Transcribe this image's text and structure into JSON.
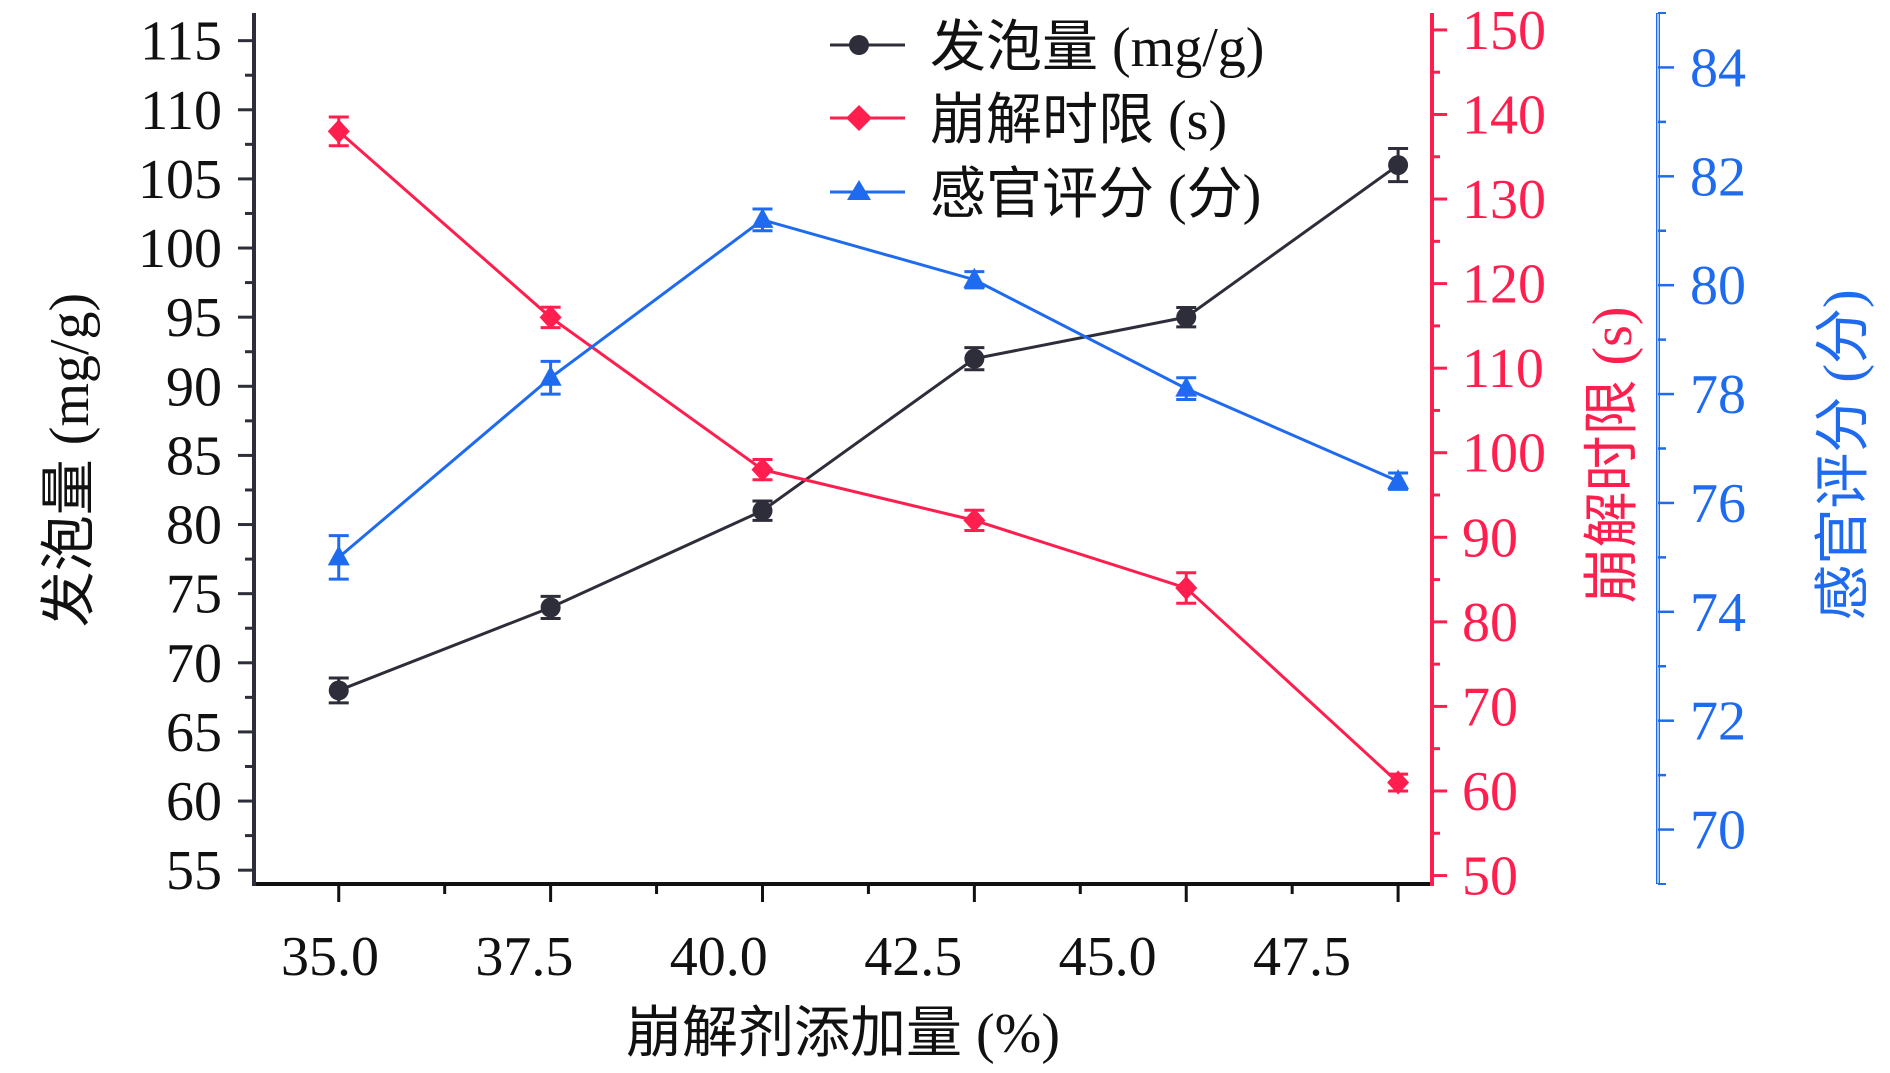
{
  "chart_data": {
    "type": "line",
    "title": "",
    "xlabel": "崩解剂添加量 (%)",
    "x": [
      35.0,
      37.5,
      40.0,
      42.5,
      45.0,
      47.5
    ],
    "x_tick_labels": [
      "35.0",
      "37.5",
      "40.0",
      "42.5",
      "45.0",
      "47.5"
    ],
    "xlim": [
      34.0,
      47.9
    ],
    "grid": false,
    "legend_position": "top-center",
    "axes": {
      "left": {
        "label": "发泡量 (mg/g)",
        "color": "#2e2e3a",
        "ylim": [
          54,
          117
        ],
        "ticks": [
          55,
          60,
          65,
          70,
          75,
          80,
          85,
          90,
          95,
          100,
          105,
          110,
          115
        ],
        "tick_labels": [
          "55",
          "60",
          "65",
          "70",
          "75",
          "80",
          "85",
          "90",
          "95",
          "100",
          "105",
          "110",
          "115"
        ]
      },
      "right1": {
        "label": "崩解时限 (s)",
        "color": "#ff1f4f",
        "ylim": [
          49,
          152
        ],
        "ticks": [
          50,
          60,
          70,
          80,
          90,
          100,
          110,
          120,
          130,
          140,
          150
        ],
        "tick_labels": [
          "50",
          "60",
          "70",
          "80",
          "90",
          "100",
          "110",
          "120",
          "130",
          "140",
          "150"
        ]
      },
      "right2": {
        "label": "感官评分 (分)",
        "color": "#1f6bf0",
        "ylim": [
          69,
          85
        ],
        "ticks": [
          70,
          72,
          74,
          76,
          78,
          80,
          82,
          84
        ],
        "tick_labels": [
          "70",
          "72",
          "74",
          "76",
          "78",
          "80",
          "82",
          "84"
        ]
      }
    },
    "series": [
      {
        "name": "发泡量 (mg/g)",
        "axis": "left",
        "marker": "circle",
        "color": "#2e2e3a",
        "values": [
          68.0,
          74.0,
          81.0,
          92.0,
          95.0,
          106.0
        ],
        "errors": [
          0.9,
          0.8,
          0.7,
          0.8,
          0.7,
          1.2
        ]
      },
      {
        "name": "崩解时限 (s)",
        "axis": "right1",
        "marker": "diamond",
        "color": "#ff1f4f",
        "values": [
          138.0,
          116.0,
          98.0,
          92.0,
          84.0,
          61.0
        ],
        "errors": [
          1.7,
          1.2,
          1.2,
          1.2,
          1.8,
          1.0
        ]
      },
      {
        "name": "感官评分 (分)",
        "axis": "right2",
        "marker": "triangle",
        "color": "#1f6bf0",
        "values": [
          75.0,
          78.3,
          81.2,
          80.1,
          78.1,
          76.4
        ],
        "errors": [
          0.4,
          0.3,
          0.2,
          0.15,
          0.2,
          0.15
        ]
      }
    ]
  }
}
